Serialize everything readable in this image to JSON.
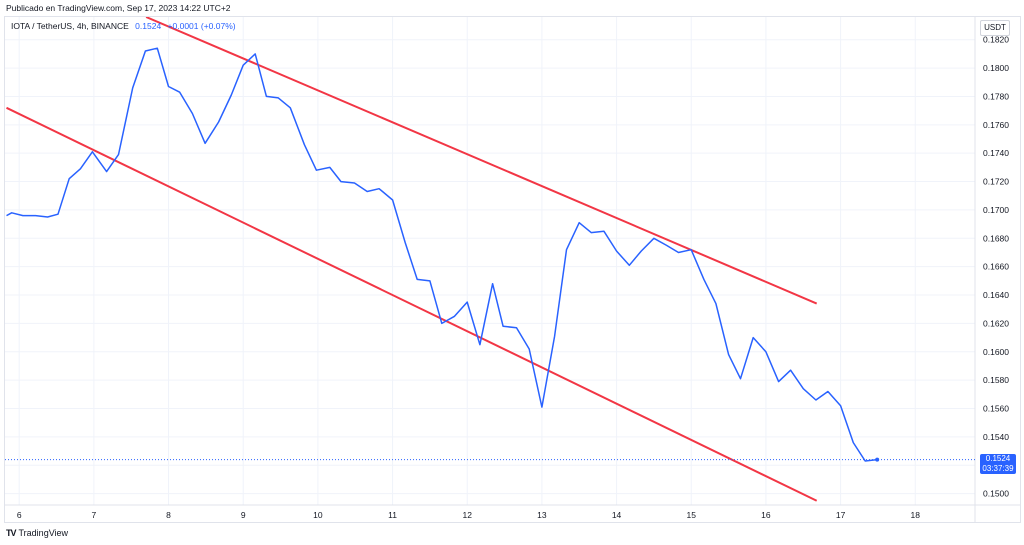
{
  "publisher_line": "Publicado en TradingView.com, Sep 17, 2023 14:22 UTC+2",
  "legend": {
    "symbol": "IOTA / TetherUS, 4h, BINANCE",
    "price": "0.1524",
    "change": "+0.0001 (+0.07%)"
  },
  "currency": "USDT",
  "last_price": {
    "value": "0.1524",
    "countdown": "03:37:39"
  },
  "brand": {
    "logo": "TV",
    "name": "TradingView"
  },
  "colors": {
    "price_line": "#2962ff",
    "channel": "#f23645",
    "grid": "#f0f3fa",
    "last_price_box": "#2962ff"
  },
  "chart_data": {
    "type": "line",
    "title": "IOTA / TetherUS, 4h, BINANCE",
    "xlabel": "",
    "ylabel": "",
    "x_ticks": [
      "6",
      "7",
      "8",
      "9",
      "10",
      "11",
      "12",
      "13",
      "14",
      "15",
      "16",
      "17",
      "18"
    ],
    "y_ticks": [
      "0.1500",
      "0.1520",
      "0.1540",
      "0.1560",
      "0.1580",
      "0.1600",
      "0.1620",
      "0.1640",
      "0.1660",
      "0.1680",
      "0.1700",
      "0.1720",
      "0.1740",
      "0.1760",
      "0.1780",
      "0.1800",
      "0.1820"
    ],
    "xlim": [
      5.81,
      18.8
    ],
    "ylim": [
      0.1492,
      0.1836
    ],
    "grid": true,
    "series": [
      {
        "values": [
          {
            "x": 5.83,
            "y": 0.1696
          },
          {
            "x": 5.9,
            "y": 0.1698
          },
          {
            "x": 6.05,
            "y": 0.1696
          },
          {
            "x": 6.22,
            "y": 0.1696
          },
          {
            "x": 6.38,
            "y": 0.1695
          },
          {
            "x": 6.52,
            "y": 0.1697
          },
          {
            "x": 6.67,
            "y": 0.1722
          },
          {
            "x": 6.82,
            "y": 0.1729
          },
          {
            "x": 6.98,
            "y": 0.1741
          },
          {
            "x": 7.17,
            "y": 0.1727
          },
          {
            "x": 7.33,
            "y": 0.1739
          },
          {
            "x": 7.52,
            "y": 0.1786
          },
          {
            "x": 7.69,
            "y": 0.1812
          },
          {
            "x": 7.85,
            "y": 0.1814
          },
          {
            "x": 8.0,
            "y": 0.1787
          },
          {
            "x": 8.15,
            "y": 0.1783
          },
          {
            "x": 8.32,
            "y": 0.1768
          },
          {
            "x": 8.49,
            "y": 0.1747
          },
          {
            "x": 8.67,
            "y": 0.1762
          },
          {
            "x": 8.84,
            "y": 0.1781
          },
          {
            "x": 9.0,
            "y": 0.1802
          },
          {
            "x": 9.16,
            "y": 0.181
          },
          {
            "x": 9.31,
            "y": 0.178
          },
          {
            "x": 9.47,
            "y": 0.1779
          },
          {
            "x": 9.63,
            "y": 0.1772
          },
          {
            "x": 9.82,
            "y": 0.1746
          },
          {
            "x": 9.98,
            "y": 0.1728
          },
          {
            "x": 10.16,
            "y": 0.173
          },
          {
            "x": 10.31,
            "y": 0.172
          },
          {
            "x": 10.49,
            "y": 0.1719
          },
          {
            "x": 10.66,
            "y": 0.1713
          },
          {
            "x": 10.82,
            "y": 0.1715
          },
          {
            "x": 11.0,
            "y": 0.1707
          },
          {
            "x": 11.17,
            "y": 0.1677
          },
          {
            "x": 11.33,
            "y": 0.1651
          },
          {
            "x": 11.5,
            "y": 0.165
          },
          {
            "x": 11.66,
            "y": 0.162
          },
          {
            "x": 11.83,
            "y": 0.1625
          },
          {
            "x": 12.0,
            "y": 0.1635
          },
          {
            "x": 12.17,
            "y": 0.1605
          },
          {
            "x": 12.34,
            "y": 0.1648
          },
          {
            "x": 12.48,
            "y": 0.1618
          },
          {
            "x": 12.66,
            "y": 0.1617
          },
          {
            "x": 12.83,
            "y": 0.1602
          },
          {
            "x": 13.0,
            "y": 0.1561
          },
          {
            "x": 13.17,
            "y": 0.1611
          },
          {
            "x": 13.33,
            "y": 0.1672
          },
          {
            "x": 13.5,
            "y": 0.1691
          },
          {
            "x": 13.66,
            "y": 0.1684
          },
          {
            "x": 13.83,
            "y": 0.1685
          },
          {
            "x": 14.0,
            "y": 0.1671
          },
          {
            "x": 14.17,
            "y": 0.1661
          },
          {
            "x": 14.33,
            "y": 0.1671
          },
          {
            "x": 14.5,
            "y": 0.168
          },
          {
            "x": 14.67,
            "y": 0.1675
          },
          {
            "x": 14.83,
            "y": 0.167
          },
          {
            "x": 15.0,
            "y": 0.1672
          },
          {
            "x": 15.17,
            "y": 0.1651
          },
          {
            "x": 15.33,
            "y": 0.1634
          },
          {
            "x": 15.5,
            "y": 0.1598
          },
          {
            "x": 15.66,
            "y": 0.1581
          },
          {
            "x": 15.83,
            "y": 0.161
          },
          {
            "x": 16.0,
            "y": 0.16
          },
          {
            "x": 16.17,
            "y": 0.1579
          },
          {
            "x": 16.33,
            "y": 0.1587
          },
          {
            "x": 16.5,
            "y": 0.1574
          },
          {
            "x": 16.67,
            "y": 0.1566
          },
          {
            "x": 16.83,
            "y": 0.1572
          },
          {
            "x": 17.0,
            "y": 0.1562
          },
          {
            "x": 17.17,
            "y": 0.1536
          },
          {
            "x": 17.33,
            "y": 0.1523
          },
          {
            "x": 17.49,
            "y": 0.1524
          }
        ]
      }
    ],
    "trendlines": [
      {
        "points": [
          {
            "x": 7.7,
            "y": 0.1836
          },
          {
            "x": 16.68,
            "y": 0.1634
          }
        ]
      },
      {
        "points": [
          {
            "x": 5.83,
            "y": 0.1772
          },
          {
            "x": 16.68,
            "y": 0.1495
          }
        ]
      }
    ],
    "last_value": 0.1524
  }
}
